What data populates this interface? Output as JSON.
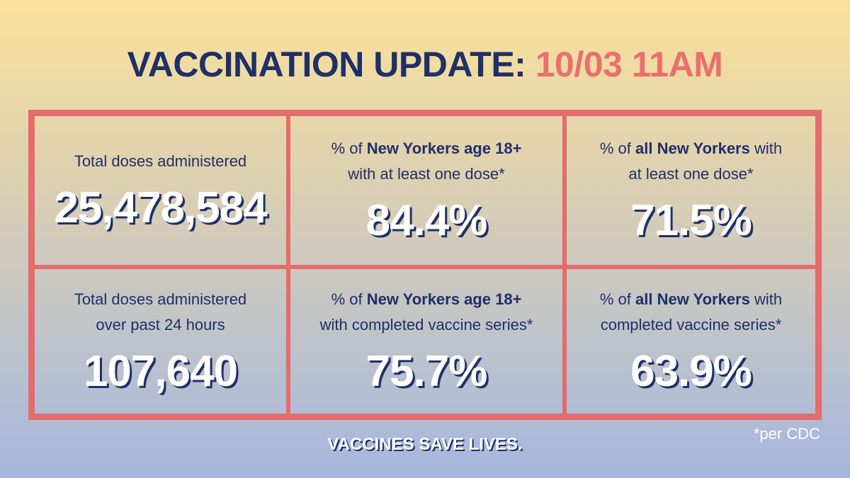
{
  "header": {
    "title": "VACCINATION UPDATE:",
    "date": "10/03 11AM"
  },
  "cells": [
    {
      "label": [
        [
          {
            "text": "Total doses administered",
            "bold": false
          }
        ]
      ],
      "value": "25,478,584"
    },
    {
      "label": [
        [
          {
            "text": "% of ",
            "bold": false
          },
          {
            "text": "New Yorkers age 18+",
            "bold": true
          }
        ],
        [
          {
            "text": "with at least one dose*",
            "bold": false
          }
        ]
      ],
      "value": "84.4%"
    },
    {
      "label": [
        [
          {
            "text": "% of ",
            "bold": false
          },
          {
            "text": "all New Yorkers",
            "bold": true
          },
          {
            "text": " with",
            "bold": false
          }
        ],
        [
          {
            "text": "at least one dose*",
            "bold": false
          }
        ]
      ],
      "value": "71.5%"
    },
    {
      "label": [
        [
          {
            "text": "Total doses administered",
            "bold": false
          }
        ],
        [
          {
            "text": "over past 24 hours",
            "bold": false
          }
        ]
      ],
      "value": "107,640"
    },
    {
      "label": [
        [
          {
            "text": "% of ",
            "bold": false
          },
          {
            "text": "New Yorkers age 18+",
            "bold": true
          }
        ],
        [
          {
            "text": "with completed vaccine series*",
            "bold": false
          }
        ]
      ],
      "value": "75.7%"
    },
    {
      "label": [
        [
          {
            "text": "% of ",
            "bold": false
          },
          {
            "text": "all New Yorkers",
            "bold": true
          },
          {
            "text": " with",
            "bold": false
          }
        ],
        [
          {
            "text": "completed vaccine series*",
            "bold": false
          }
        ]
      ],
      "value": "63.9%"
    }
  ],
  "footer": {
    "slogan": "VACCINES SAVE LIVES.",
    "note": "*per CDC"
  }
}
